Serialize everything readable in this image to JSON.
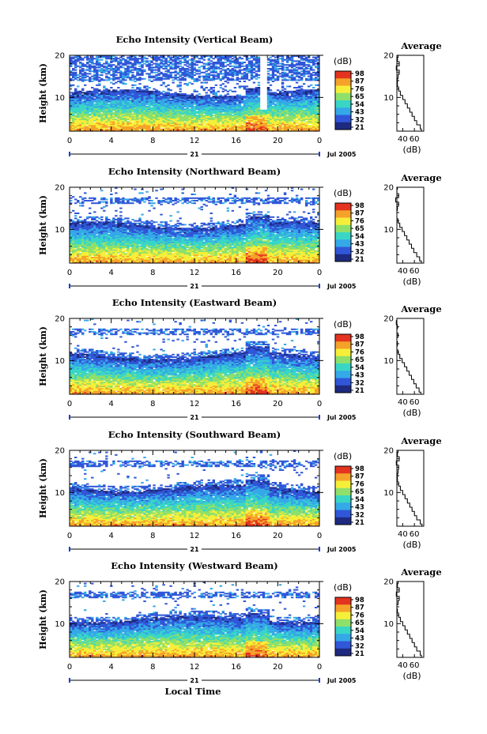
{
  "figure": {
    "bottom_xlabel": "Local Time"
  },
  "chart_data": [
    {
      "type": "heatmap",
      "title": "Echo Intensity (Vertical Beam)",
      "ylabel": "Height (km)",
      "ylim": [
        2,
        20
      ],
      "yticks": [
        "20",
        "10"
      ],
      "xlim": [
        0,
        24
      ],
      "xticks": [
        "0",
        "4",
        "8",
        "12",
        "16",
        "20",
        "0"
      ],
      "day_label": "21",
      "date_label": "Jul 2005",
      "colorbar": {
        "unit": "(dB)",
        "ticks": [
          "98",
          "87",
          "76",
          "65",
          "54",
          "43",
          "32",
          "21"
        ],
        "colors": [
          "#1e2a80",
          "#3057d8",
          "#35a8e8",
          "#39d6c6",
          "#8ee06a",
          "#f6ef3a",
          "#f5a22a",
          "#e4331f"
        ]
      },
      "average_profile": {
        "title": "Average",
        "xlabel": "(dB)",
        "xticks": [
          "40",
          "60"
        ],
        "ylim": [
          2,
          20
        ],
        "yticks": [
          "20",
          "10"
        ],
        "height_km": [
          2,
          3,
          4,
          5,
          6,
          7,
          8,
          9,
          10,
          11,
          12,
          13,
          14,
          15,
          16,
          17,
          18,
          19,
          20
        ],
        "avg_db": [
          72,
          70,
          64,
          60,
          56,
          52,
          48,
          44,
          40,
          36,
          33,
          31,
          31,
          32,
          34,
          29,
          34,
          31,
          32
        ]
      }
    },
    {
      "type": "heatmap",
      "title": "Echo Intensity (Northward Beam)",
      "ylabel": "Height (km)",
      "ylim": [
        2,
        20
      ],
      "yticks": [
        "20",
        "10"
      ],
      "xlim": [
        0,
        24
      ],
      "xticks": [
        "0",
        "4",
        "8",
        "12",
        "16",
        "20",
        "0"
      ],
      "day_label": "21",
      "date_label": "Jul 2005",
      "colorbar": {
        "unit": "(dB)",
        "ticks": [
          "98",
          "87",
          "76",
          "65",
          "54",
          "43",
          "32",
          "21"
        ],
        "colors": [
          "#1e2a80",
          "#3057d8",
          "#35a8e8",
          "#39d6c6",
          "#8ee06a",
          "#f6ef3a",
          "#f5a22a",
          "#e4331f"
        ]
      },
      "average_profile": {
        "title": "Average",
        "xlabel": "(dB)",
        "xticks": [
          "40",
          "60"
        ],
        "ylim": [
          2,
          20
        ],
        "yticks": [
          "20",
          "10"
        ],
        "height_km": [
          2,
          3,
          4,
          5,
          6,
          7,
          8,
          9,
          10,
          11,
          12,
          13,
          14,
          15,
          16,
          17,
          18,
          19,
          20
        ],
        "avg_db": [
          72,
          69,
          64,
          59,
          55,
          51,
          47,
          43,
          39,
          35,
          32,
          30,
          30,
          31,
          33,
          28,
          33,
          30,
          31
        ]
      }
    },
    {
      "type": "heatmap",
      "title": "Echo Intensity (Eastward Beam)",
      "ylabel": "Height (km)",
      "ylim": [
        2,
        20
      ],
      "yticks": [
        "20",
        "10"
      ],
      "xlim": [
        0,
        24
      ],
      "xticks": [
        "0",
        "4",
        "8",
        "12",
        "16",
        "20",
        "0"
      ],
      "day_label": "21",
      "date_label": "Jul 2005",
      "colorbar": {
        "unit": "(dB)",
        "ticks": [
          "98",
          "87",
          "76",
          "65",
          "54",
          "43",
          "32",
          "21"
        ],
        "colors": [
          "#1e2a80",
          "#3057d8",
          "#35a8e8",
          "#39d6c6",
          "#8ee06a",
          "#f6ef3a",
          "#f5a22a",
          "#e4331f"
        ]
      },
      "average_profile": {
        "title": "Average",
        "xlabel": "(dB)",
        "xticks": [
          "40",
          "60"
        ],
        "ylim": [
          2,
          20
        ],
        "yticks": [
          "20",
          "10"
        ],
        "height_km": [
          2,
          3,
          4,
          5,
          6,
          7,
          8,
          9,
          10,
          11,
          12,
          13,
          14,
          15,
          16,
          17,
          18,
          19,
          20
        ],
        "avg_db": [
          71,
          68,
          63,
          59,
          55,
          51,
          47,
          43,
          39,
          35,
          32,
          30,
          31,
          30,
          32,
          30,
          31,
          29,
          30
        ]
      }
    },
    {
      "type": "heatmap",
      "title": "Echo Intensity (Southward Beam)",
      "ylabel": "Height (km)",
      "ylim": [
        2,
        20
      ],
      "yticks": [
        "20",
        "10"
      ],
      "xlim": [
        0,
        24
      ],
      "xticks": [
        "0",
        "4",
        "8",
        "12",
        "16",
        "20",
        "0"
      ],
      "day_label": "21",
      "date_label": "Jul 2005",
      "colorbar": {
        "unit": "(dB)",
        "ticks": [
          "98",
          "87",
          "76",
          "65",
          "54",
          "43",
          "32",
          "21"
        ],
        "colors": [
          "#1e2a80",
          "#3057d8",
          "#35a8e8",
          "#39d6c6",
          "#8ee06a",
          "#f6ef3a",
          "#f5a22a",
          "#e4331f"
        ]
      },
      "average_profile": {
        "title": "Average",
        "xlabel": "(dB)",
        "xticks": [
          "40",
          "60"
        ],
        "ylim": [
          2,
          20
        ],
        "yticks": [
          "20",
          "10"
        ],
        "height_km": [
          2,
          3,
          4,
          5,
          6,
          7,
          8,
          9,
          10,
          11,
          12,
          13,
          14,
          15,
          16,
          17,
          18,
          19,
          20
        ],
        "avg_db": [
          73,
          70,
          64,
          60,
          56,
          52,
          48,
          44,
          40,
          36,
          33,
          31,
          31,
          32,
          33,
          29,
          34,
          31,
          32
        ]
      }
    },
    {
      "type": "heatmap",
      "title": "Echo Intensity (Westward Beam)",
      "ylabel": "Height (km)",
      "ylim": [
        2,
        20
      ],
      "yticks": [
        "20",
        "10"
      ],
      "xlim": [
        0,
        24
      ],
      "xticks": [
        "0",
        "4",
        "8",
        "12",
        "16",
        "20",
        "0"
      ],
      "day_label": "21",
      "date_label": "Jul 2005",
      "colorbar": {
        "unit": "(dB)",
        "ticks": [
          "98",
          "87",
          "76",
          "65",
          "54",
          "43",
          "32",
          "21"
        ],
        "colors": [
          "#1e2a80",
          "#3057d8",
          "#35a8e8",
          "#39d6c6",
          "#8ee06a",
          "#f6ef3a",
          "#f5a22a",
          "#e4331f"
        ]
      },
      "average_profile": {
        "title": "Average",
        "xlabel": "(dB)",
        "xticks": [
          "40",
          "60"
        ],
        "ylim": [
          2,
          20
        ],
        "yticks": [
          "20",
          "10"
        ],
        "height_km": [
          2,
          3,
          4,
          5,
          6,
          7,
          8,
          9,
          10,
          11,
          12,
          13,
          14,
          15,
          16,
          17,
          18,
          19,
          20
        ],
        "avg_db": [
          72,
          70,
          64,
          60,
          56,
          52,
          48,
          44,
          40,
          36,
          33,
          31,
          30,
          32,
          34,
          29,
          34,
          31,
          32
        ]
      }
    }
  ]
}
